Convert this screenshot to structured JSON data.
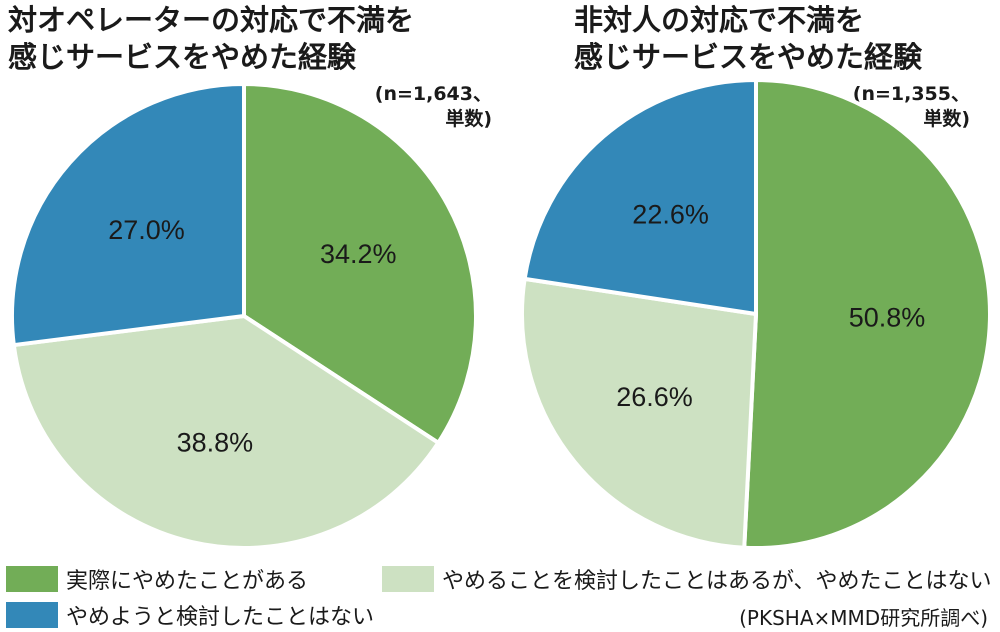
{
  "chart_data": [
    {
      "type": "pie",
      "title_lines": [
        "対オペレーターの対応で不満を",
        "感じサービスをやめた経験"
      ],
      "n_lines": [
        "(n=1,643、",
        "単数)"
      ],
      "slices": [
        {
          "category": "実際にやめたことがある",
          "value": 34.2,
          "label": "34.2%"
        },
        {
          "category": "やめることを検討したことはあるが、やめたことはない",
          "value": 38.8,
          "label": "38.8%"
        },
        {
          "category": "やめようと検討したことはない",
          "value": 27.0,
          "label": "27.0%"
        }
      ]
    },
    {
      "type": "pie",
      "title_lines": [
        "非対人の対応で不満を",
        "感じサービスをやめた経験"
      ],
      "n_lines": [
        "(n=1,355、",
        "単数)"
      ],
      "slices": [
        {
          "category": "実際にやめたことがある",
          "value": 50.8,
          "label": "50.8%"
        },
        {
          "category": "やめることを検討したことはあるが、やめたことはない",
          "value": 26.6,
          "label": "26.6%"
        },
        {
          "category": "やめようと検討したことはない",
          "value": 22.6,
          "label": "22.6%"
        }
      ]
    }
  ],
  "legend": [
    {
      "label": "実際にやめたことがある",
      "color": "#72ad57"
    },
    {
      "label": "やめることを検討したことはあるが、やめたことはない",
      "color": "#cde1c2"
    },
    {
      "label": "やめようと検討したことはない",
      "color": "#3388b8"
    }
  ],
  "source": "(PKSHA×MMD研究所調べ)"
}
